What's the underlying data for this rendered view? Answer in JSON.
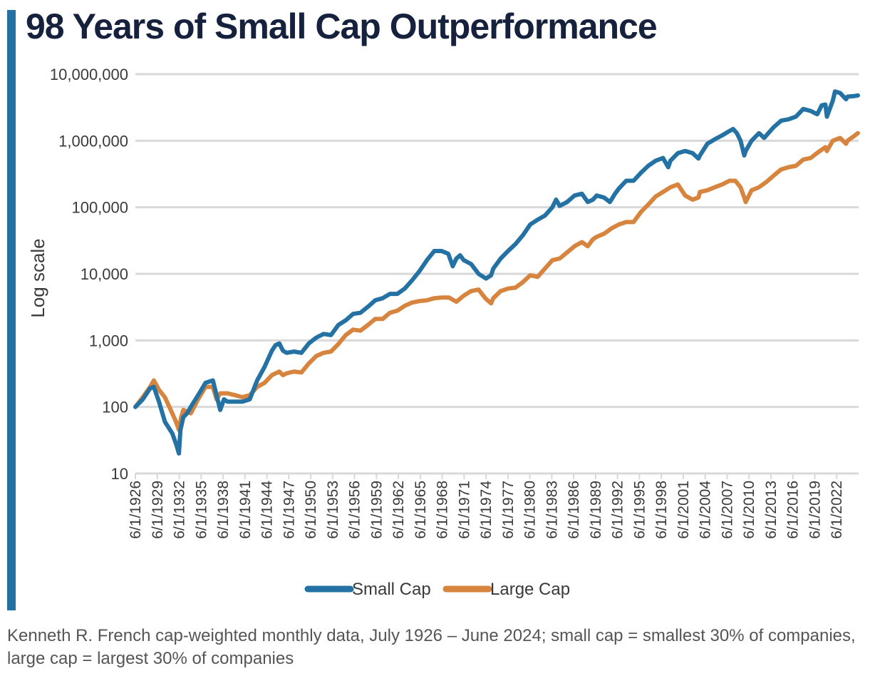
{
  "colors": {
    "accent": "#2472a4",
    "small_cap": "#2472a4",
    "large_cap": "#d6843e",
    "title": "#16213e",
    "grid": "#d9d9d9"
  },
  "footnote": "Kenneth R. French cap-weighted monthly data, July 1926 – June 2024; small cap = smallest 30% of companies, large cap = largest 30% of companies",
  "chart_data": {
    "type": "line",
    "title": "98 Years of Small Cap Outperformance",
    "ylabel": "Log scale",
    "xlabel": "",
    "yscale": "log",
    "ylim": [
      10,
      10000000
    ],
    "yticks": [
      10,
      100,
      1000,
      10000,
      100000,
      1000000,
      10000000
    ],
    "ytick_labels": [
      "10",
      "100",
      "1,000",
      "10,000",
      "100,000",
      "1,000,000",
      "10,000,000"
    ],
    "xlim": [
      1926.5,
      2024.5
    ],
    "xticks": [
      "6/1/1926",
      "6/1/1929",
      "6/1/1932",
      "6/1/1935",
      "6/1/1938",
      "6/1/1941",
      "6/1/1944",
      "6/1/1947",
      "6/1/1950",
      "6/1/1953",
      "6/1/1956",
      "6/1/1959",
      "6/1/1962",
      "6/1/1965",
      "6/1/1968",
      "6/1/1971",
      "6/1/1974",
      "6/1/1977",
      "6/1/1980",
      "6/1/1983",
      "6/1/1986",
      "6/1/1989",
      "6/1/1992",
      "6/1/1995",
      "6/1/1998",
      "6/1/2001",
      "6/1/2004",
      "6/1/2007",
      "6/1/2010",
      "6/1/2013",
      "6/1/2016",
      "6/1/2019",
      "6/1/2022"
    ],
    "grid": true,
    "legend_position": "bottom-center",
    "series": [
      {
        "name": "Small Cap",
        "x": [
          1926.5,
          1927.5,
          1928.5,
          1929.0,
          1929.7,
          1930.5,
          1931.5,
          1932.0,
          1932.4,
          1932.6,
          1933.0,
          1933.5,
          1934.0,
          1935.0,
          1936.0,
          1937.0,
          1937.5,
          1938.0,
          1938.5,
          1939.0,
          1940.0,
          1941.0,
          1942.0,
          1943.0,
          1944.0,
          1945.0,
          1945.5,
          1946.0,
          1946.5,
          1947.0,
          1948.0,
          1949.0,
          1950.0,
          1951.0,
          1952.0,
          1953.0,
          1954.0,
          1955.0,
          1956.0,
          1957.0,
          1958.0,
          1959.0,
          1960.0,
          1961.0,
          1962.0,
          1963.0,
          1964.0,
          1965.0,
          1966.0,
          1967.0,
          1968.0,
          1968.9,
          1969.5,
          1970.0,
          1970.5,
          1971.0,
          1972.0,
          1973.0,
          1974.0,
          1974.7,
          1975.0,
          1976.0,
          1977.0,
          1978.0,
          1979.0,
          1980.0,
          1981.0,
          1982.0,
          1983.0,
          1983.5,
          1984.0,
          1985.0,
          1986.0,
          1987.0,
          1987.8,
          1988.5,
          1989.0,
          1990.0,
          1990.8,
          1991.5,
          1992.0,
          1993.0,
          1994.0,
          1995.0,
          1996.0,
          1997.0,
          1998.0,
          1998.7,
          1999.0,
          2000.0,
          2001.0,
          2002.0,
          2002.8,
          2003.0,
          2004.0,
          2005.0,
          2006.0,
          2007.0,
          2007.5,
          2008.0,
          2008.5,
          2009.0,
          2009.2,
          2010.0,
          2011.0,
          2011.7,
          2012.0,
          2013.0,
          2014.0,
          2015.0,
          2016.0,
          2017.0,
          2018.0,
          2018.9,
          2019.5,
          2020.0,
          2020.2,
          2021.0,
          2021.3,
          2022.0,
          2022.8,
          2023.0,
          2024.0,
          2024.4
        ],
        "y": [
          100,
          130,
          190,
          200,
          120,
          60,
          40,
          28,
          20,
          45,
          70,
          80,
          100,
          150,
          230,
          250,
          150,
          90,
          130,
          120,
          120,
          120,
          130,
          250,
          400,
          700,
          850,
          900,
          700,
          650,
          680,
          650,
          900,
          1100,
          1250,
          1200,
          1700,
          2000,
          2500,
          2600,
          3200,
          4000,
          4300,
          5000,
          5000,
          6000,
          8000,
          11000,
          16000,
          22000,
          22000,
          20000,
          13000,
          17000,
          19000,
          16000,
          14000,
          10000,
          8500,
          9500,
          12000,
          17000,
          22000,
          28000,
          38000,
          55000,
          65000,
          75000,
          100000,
          130000,
          105000,
          120000,
          150000,
          160000,
          120000,
          130000,
          150000,
          140000,
          120000,
          160000,
          190000,
          250000,
          250000,
          330000,
          420000,
          500000,
          550000,
          400000,
          500000,
          650000,
          700000,
          650000,
          540000,
          600000,
          900000,
          1050000,
          1200000,
          1400000,
          1500000,
          1300000,
          1000000,
          600000,
          700000,
          1000000,
          1300000,
          1100000,
          1200000,
          1600000,
          2000000,
          2100000,
          2300000,
          3000000,
          2800000,
          2500000,
          3400000,
          3500000,
          2300000,
          4000000,
          5500000,
          5200000,
          4200000,
          4600000,
          4700000,
          4800000
        ]
      },
      {
        "name": "Large Cap",
        "x": [
          1926.5,
          1927.5,
          1928.5,
          1929.0,
          1929.7,
          1930.5,
          1931.5,
          1932.0,
          1932.4,
          1932.7,
          1933.0,
          1934.0,
          1935.0,
          1936.0,
          1937.0,
          1937.5,
          1938.0,
          1939.0,
          1940.0,
          1941.0,
          1942.0,
          1943.0,
          1944.0,
          1945.0,
          1946.0,
          1946.5,
          1947.0,
          1948.0,
          1949.0,
          1950.0,
          1951.0,
          1952.0,
          1953.0,
          1954.0,
          1955.0,
          1956.0,
          1957.0,
          1958.0,
          1959.0,
          1960.0,
          1961.0,
          1962.0,
          1963.0,
          1964.0,
          1965.0,
          1966.0,
          1967.0,
          1968.0,
          1969.0,
          1970.0,
          1971.0,
          1972.0,
          1973.0,
          1974.0,
          1974.7,
          1975.0,
          1976.0,
          1977.0,
          1978.0,
          1979.0,
          1980.0,
          1981.0,
          1982.0,
          1983.0,
          1984.0,
          1985.0,
          1986.0,
          1987.0,
          1987.8,
          1988.5,
          1989.0,
          1990.0,
          1991.0,
          1992.0,
          1993.0,
          1994.0,
          1995.0,
          1996.0,
          1997.0,
          1998.0,
          1999.0,
          2000.0,
          2001.0,
          2002.0,
          2002.8,
          2003.0,
          2004.0,
          2005.0,
          2006.0,
          2007.0,
          2007.8,
          2008.5,
          2009.0,
          2009.2,
          2010.0,
          2011.0,
          2012.0,
          2013.0,
          2014.0,
          2015.0,
          2016.0,
          2017.0,
          2018.0,
          2019.0,
          2020.0,
          2020.2,
          2021.0,
          2022.0,
          2022.8,
          2023.0,
          2024.0,
          2024.4
        ],
        "y": [
          100,
          140,
          200,
          250,
          180,
          140,
          80,
          60,
          45,
          70,
          90,
          80,
          130,
          200,
          200,
          130,
          160,
          160,
          150,
          140,
          150,
          200,
          230,
          300,
          340,
          300,
          320,
          340,
          330,
          450,
          580,
          650,
          680,
          880,
          1200,
          1450,
          1400,
          1700,
          2100,
          2100,
          2600,
          2800,
          3300,
          3700,
          3900,
          4000,
          4300,
          4400,
          4400,
          3800,
          4700,
          5500,
          5800,
          4200,
          3600,
          4300,
          5500,
          6000,
          6200,
          7500,
          9500,
          9000,
          12000,
          16000,
          17000,
          21000,
          26000,
          30000,
          26000,
          33000,
          36000,
          40000,
          48000,
          55000,
          60000,
          60000,
          85000,
          110000,
          145000,
          170000,
          200000,
          220000,
          150000,
          130000,
          140000,
          170000,
          180000,
          200000,
          220000,
          250000,
          250000,
          200000,
          140000,
          120000,
          180000,
          200000,
          240000,
          300000,
          370000,
          400000,
          420000,
          520000,
          550000,
          670000,
          800000,
          700000,
          1000000,
          1100000,
          900000,
          1000000,
          1200000,
          1300000
        ]
      }
    ]
  }
}
